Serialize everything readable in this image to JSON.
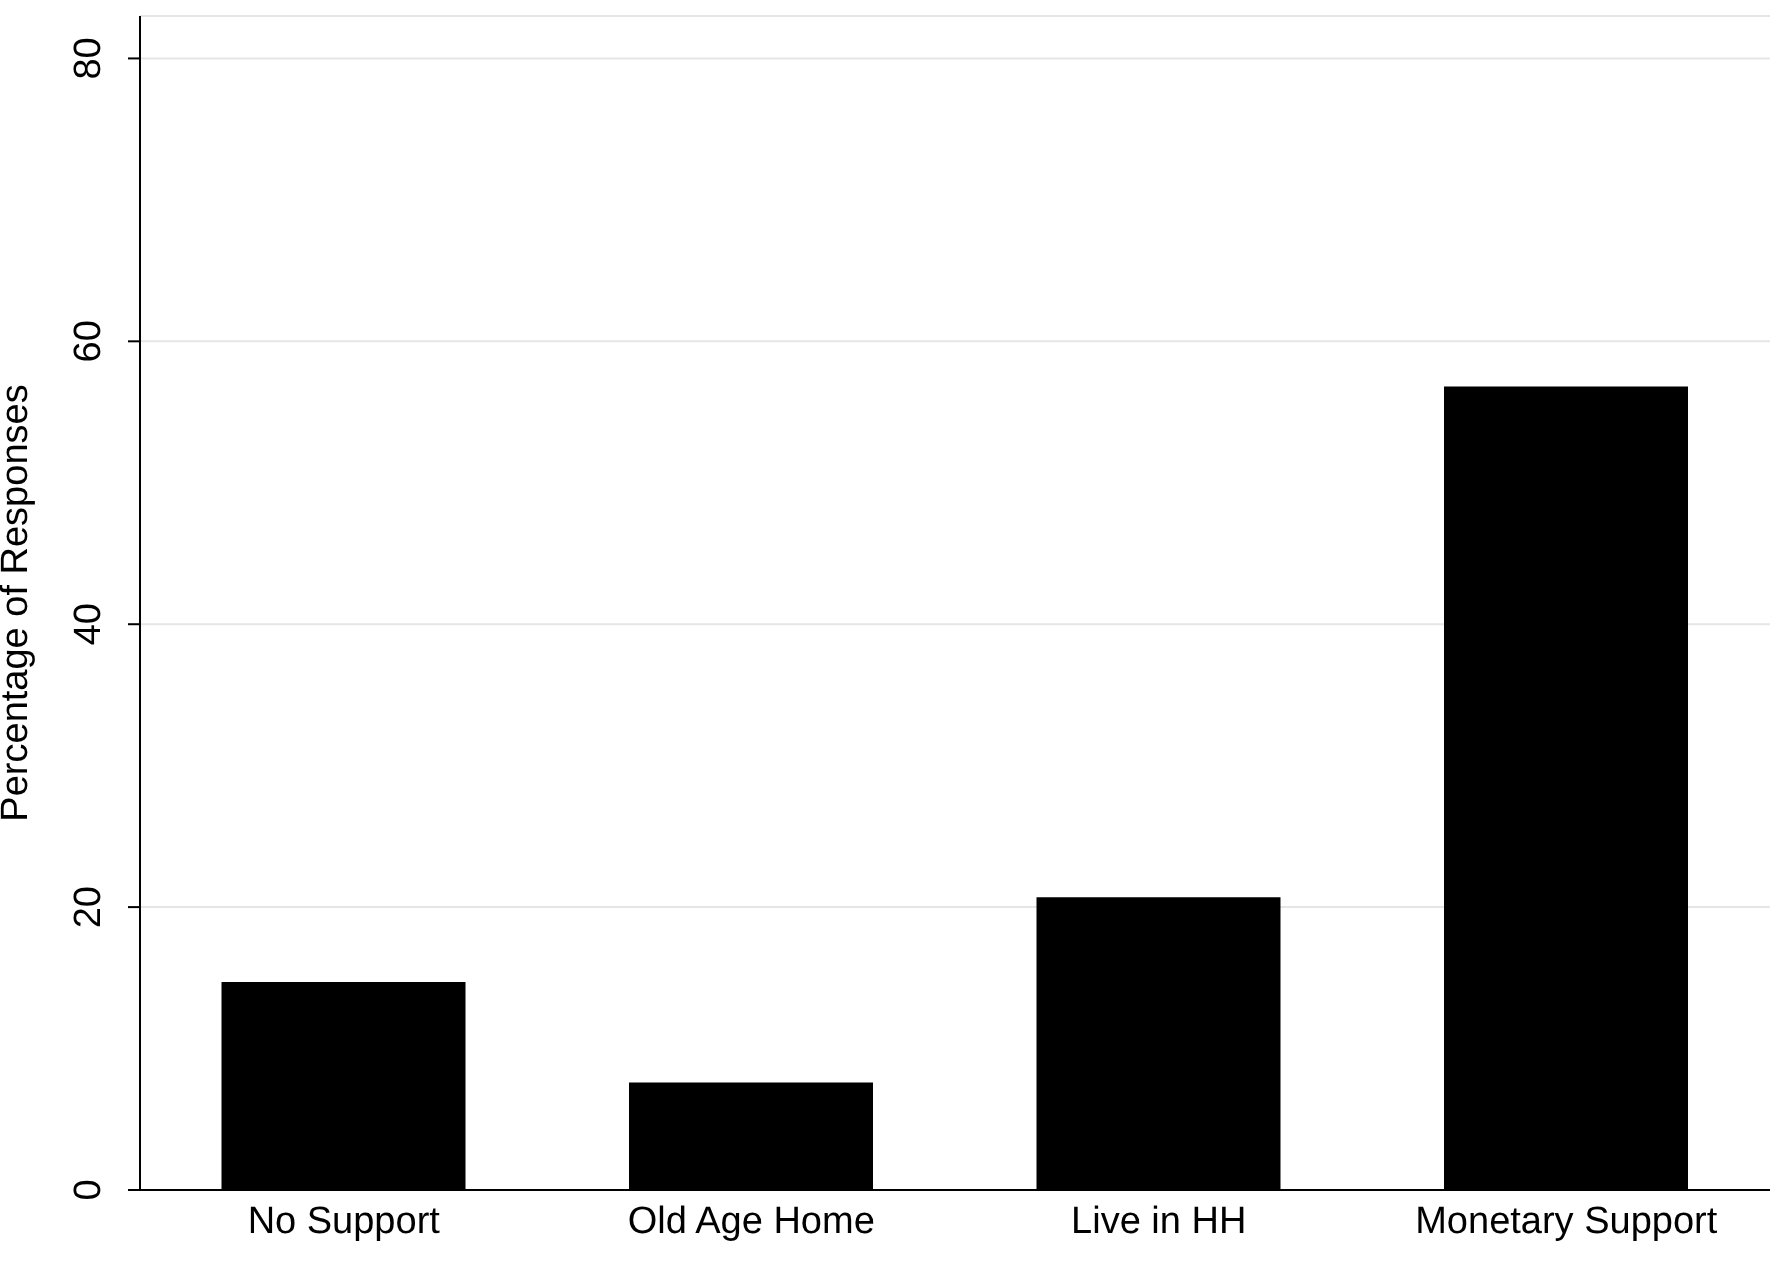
{
  "chart_data": {
    "type": "bar",
    "ylabel": "Percentage of Responses",
    "categories": [
      "No Support",
      "Old Age Home",
      "Live in HH",
      "Monetary Support"
    ],
    "values": [
      14.7,
      7.6,
      20.7,
      56.8
    ],
    "color": "#000000",
    "ylim": [
      0,
      83
    ],
    "yticks": [
      0,
      20,
      40,
      60,
      80
    ],
    "grid": "y"
  }
}
